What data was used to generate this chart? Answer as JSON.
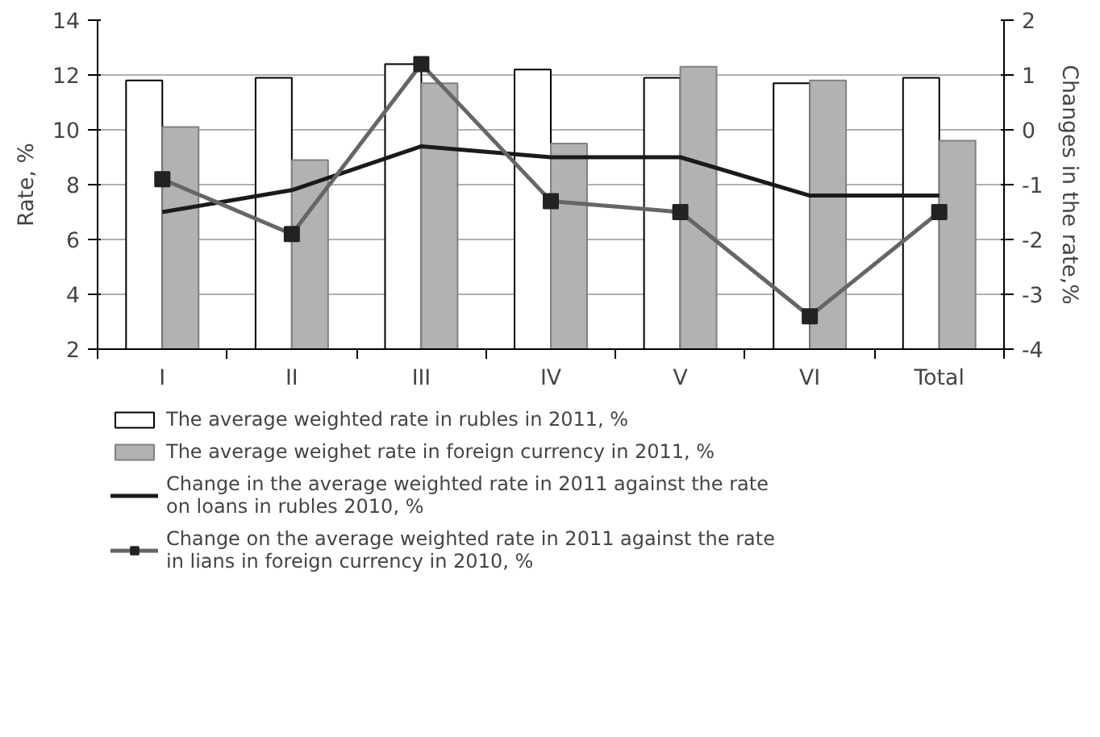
{
  "chart_data": {
    "type": "bar",
    "ylabel": "Rate, %",
    "y2label": "Changes in the rate,%",
    "categories": [
      "I",
      "II",
      "III",
      "IV",
      "V",
      "VI",
      "Total"
    ],
    "series": [
      {
        "name": "The average weighted rate in rubles in 2011, %",
        "color": "#ffffff",
        "values": [
          11.8,
          11.9,
          12.4,
          12.2,
          11.9,
          11.7,
          11.9
        ]
      },
      {
        "name": "The average weighet rate in foreign currency in 2011, %",
        "color": "#b2b2b2",
        "values": [
          10.1,
          8.9,
          11.7,
          9.5,
          12.3,
          11.8,
          9.6
        ]
      },
      {
        "name": "Change in the average weighted rate in 2011 against the rate on loans in rubles 2010, %",
        "type": "line",
        "axis": "y2",
        "color": "#1a1a1a",
        "marker": "none",
        "values": [
          -1.5,
          -1.1,
          -0.3,
          -0.5,
          -0.5,
          -1.2,
          -1.2
        ]
      },
      {
        "name": "Change on the average weighted rate in 2011 against the rate in lians in foreign currency in 2010, %",
        "type": "line",
        "axis": "y2",
        "color": "#666666",
        "marker": "square",
        "values": [
          -0.9,
          -1.9,
          1.2,
          -1.3,
          -1.5,
          -3.4,
          -1.5
        ]
      }
    ],
    "ylim": [
      2,
      14
    ],
    "yticks": [
      2,
      4,
      6,
      8,
      10,
      12,
      14
    ],
    "y2lim": [
      -4,
      2
    ],
    "y2ticks": [
      -4,
      -3,
      -2,
      -1,
      0,
      1,
      2
    ],
    "grid": "y",
    "legend": "bottom"
  }
}
